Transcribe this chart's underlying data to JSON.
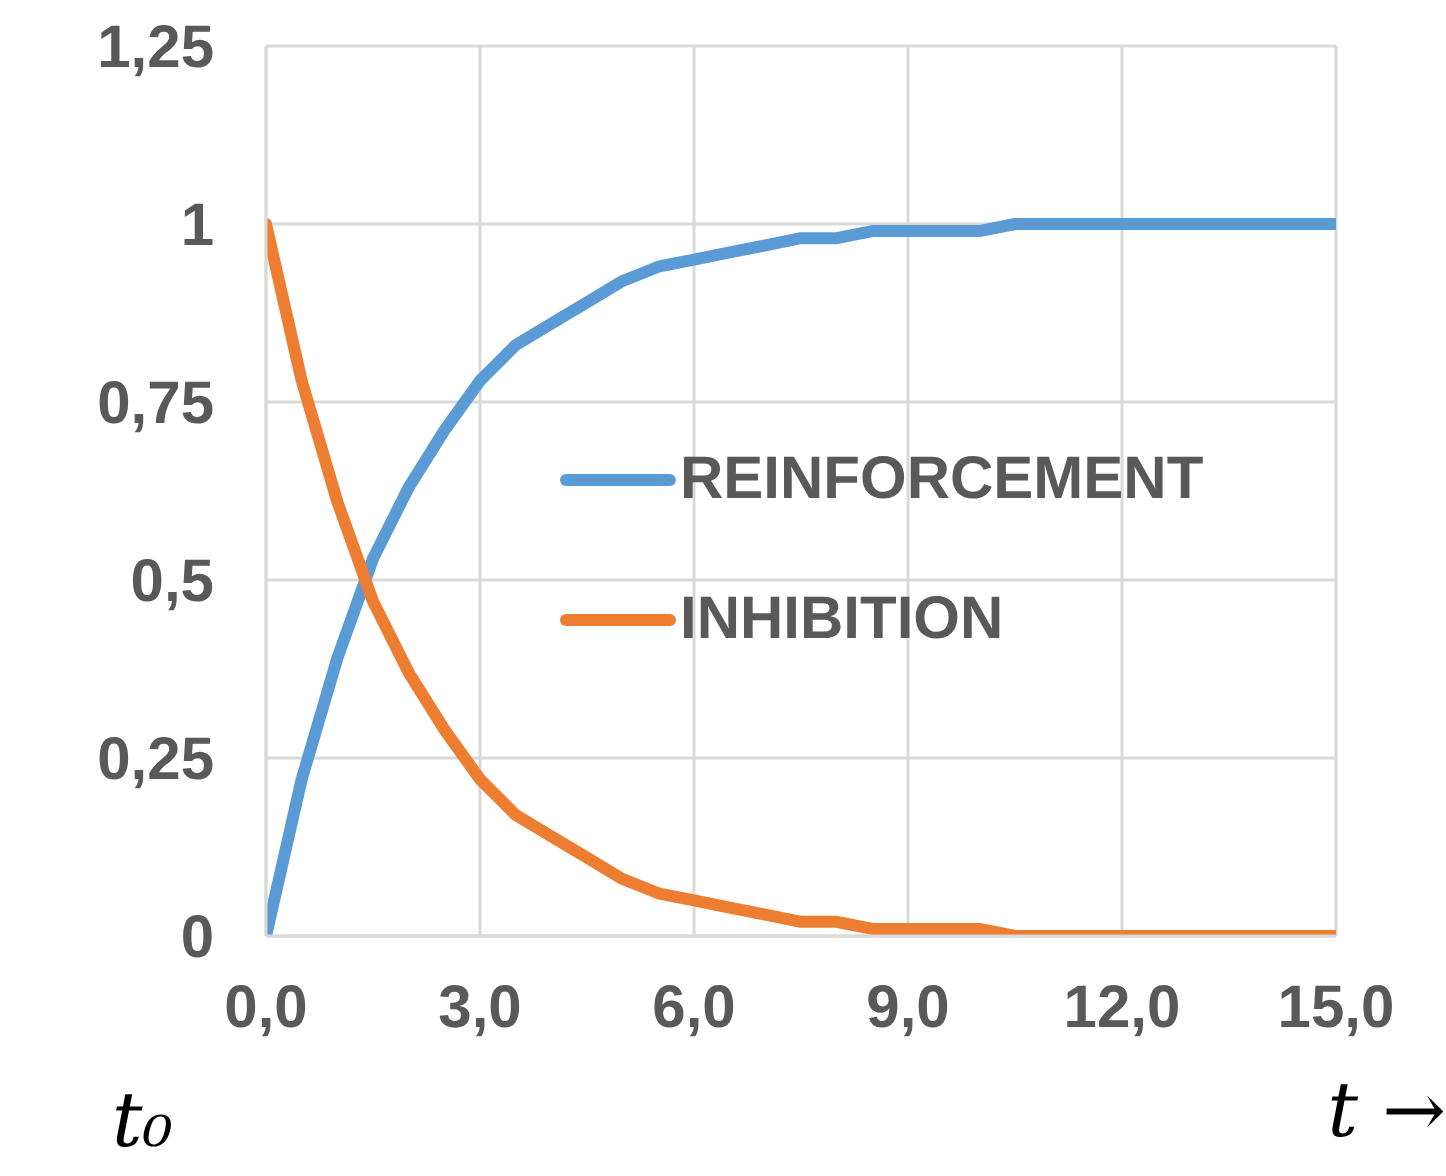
{
  "chart_data": {
    "type": "line",
    "xlabel": "t →",
    "annotations": [
      "t₀"
    ],
    "x": [
      0,
      0.5,
      1,
      1.5,
      2,
      2.5,
      3,
      3.5,
      4,
      4.5,
      5,
      5.5,
      6,
      6.5,
      7,
      7.5,
      8,
      8.5,
      9,
      9.5,
      10,
      10.5,
      11,
      11.5,
      12,
      12.5,
      13,
      13.5,
      14,
      14.5,
      15
    ],
    "series": [
      {
        "name": "REINFORCEMENT",
        "color": "#5b9bd5",
        "values": [
          0,
          0.22,
          0.39,
          0.53,
          0.63,
          0.71,
          0.78,
          0.83,
          0.86,
          0.89,
          0.92,
          0.94,
          0.95,
          0.96,
          0.97,
          0.98,
          0.98,
          0.99,
          0.99,
          0.99,
          0.99,
          1,
          1,
          1,
          1,
          1,
          1,
          1,
          1,
          1,
          1
        ]
      },
      {
        "name": "INHIBITION",
        "color": "#ed7d31",
        "values": [
          1,
          0.78,
          0.61,
          0.47,
          0.37,
          0.29,
          0.22,
          0.17,
          0.14,
          0.11,
          0.08,
          0.06,
          0.05,
          0.04,
          0.03,
          0.02,
          0.02,
          0.01,
          0.01,
          0.01,
          0.01,
          0,
          0,
          0,
          0,
          0,
          0,
          0,
          0,
          0,
          0
        ]
      }
    ],
    "xlim": [
      0,
      15
    ],
    "xticks": [
      {
        "value": 0,
        "label": "0,0"
      },
      {
        "value": 3,
        "label": "3,0"
      },
      {
        "value": 6,
        "label": "6,0"
      },
      {
        "value": 9,
        "label": "9,0"
      },
      {
        "value": 12,
        "label": "12,0"
      },
      {
        "value": 15,
        "label": "15,0"
      }
    ],
    "ylim": [
      0,
      1.25
    ],
    "yticks": [
      0,
      {
        "value": 0.25,
        "label": "0,25"
      },
      {
        "value": 0.5,
        "label": "0,5"
      },
      {
        "value": 0.75,
        "label": "0,75"
      },
      1,
      {
        "value": 1.25,
        "label": "1,25"
      }
    ],
    "grid": true,
    "legend": "right",
    "marker": "none",
    "line_style": "solid"
  }
}
